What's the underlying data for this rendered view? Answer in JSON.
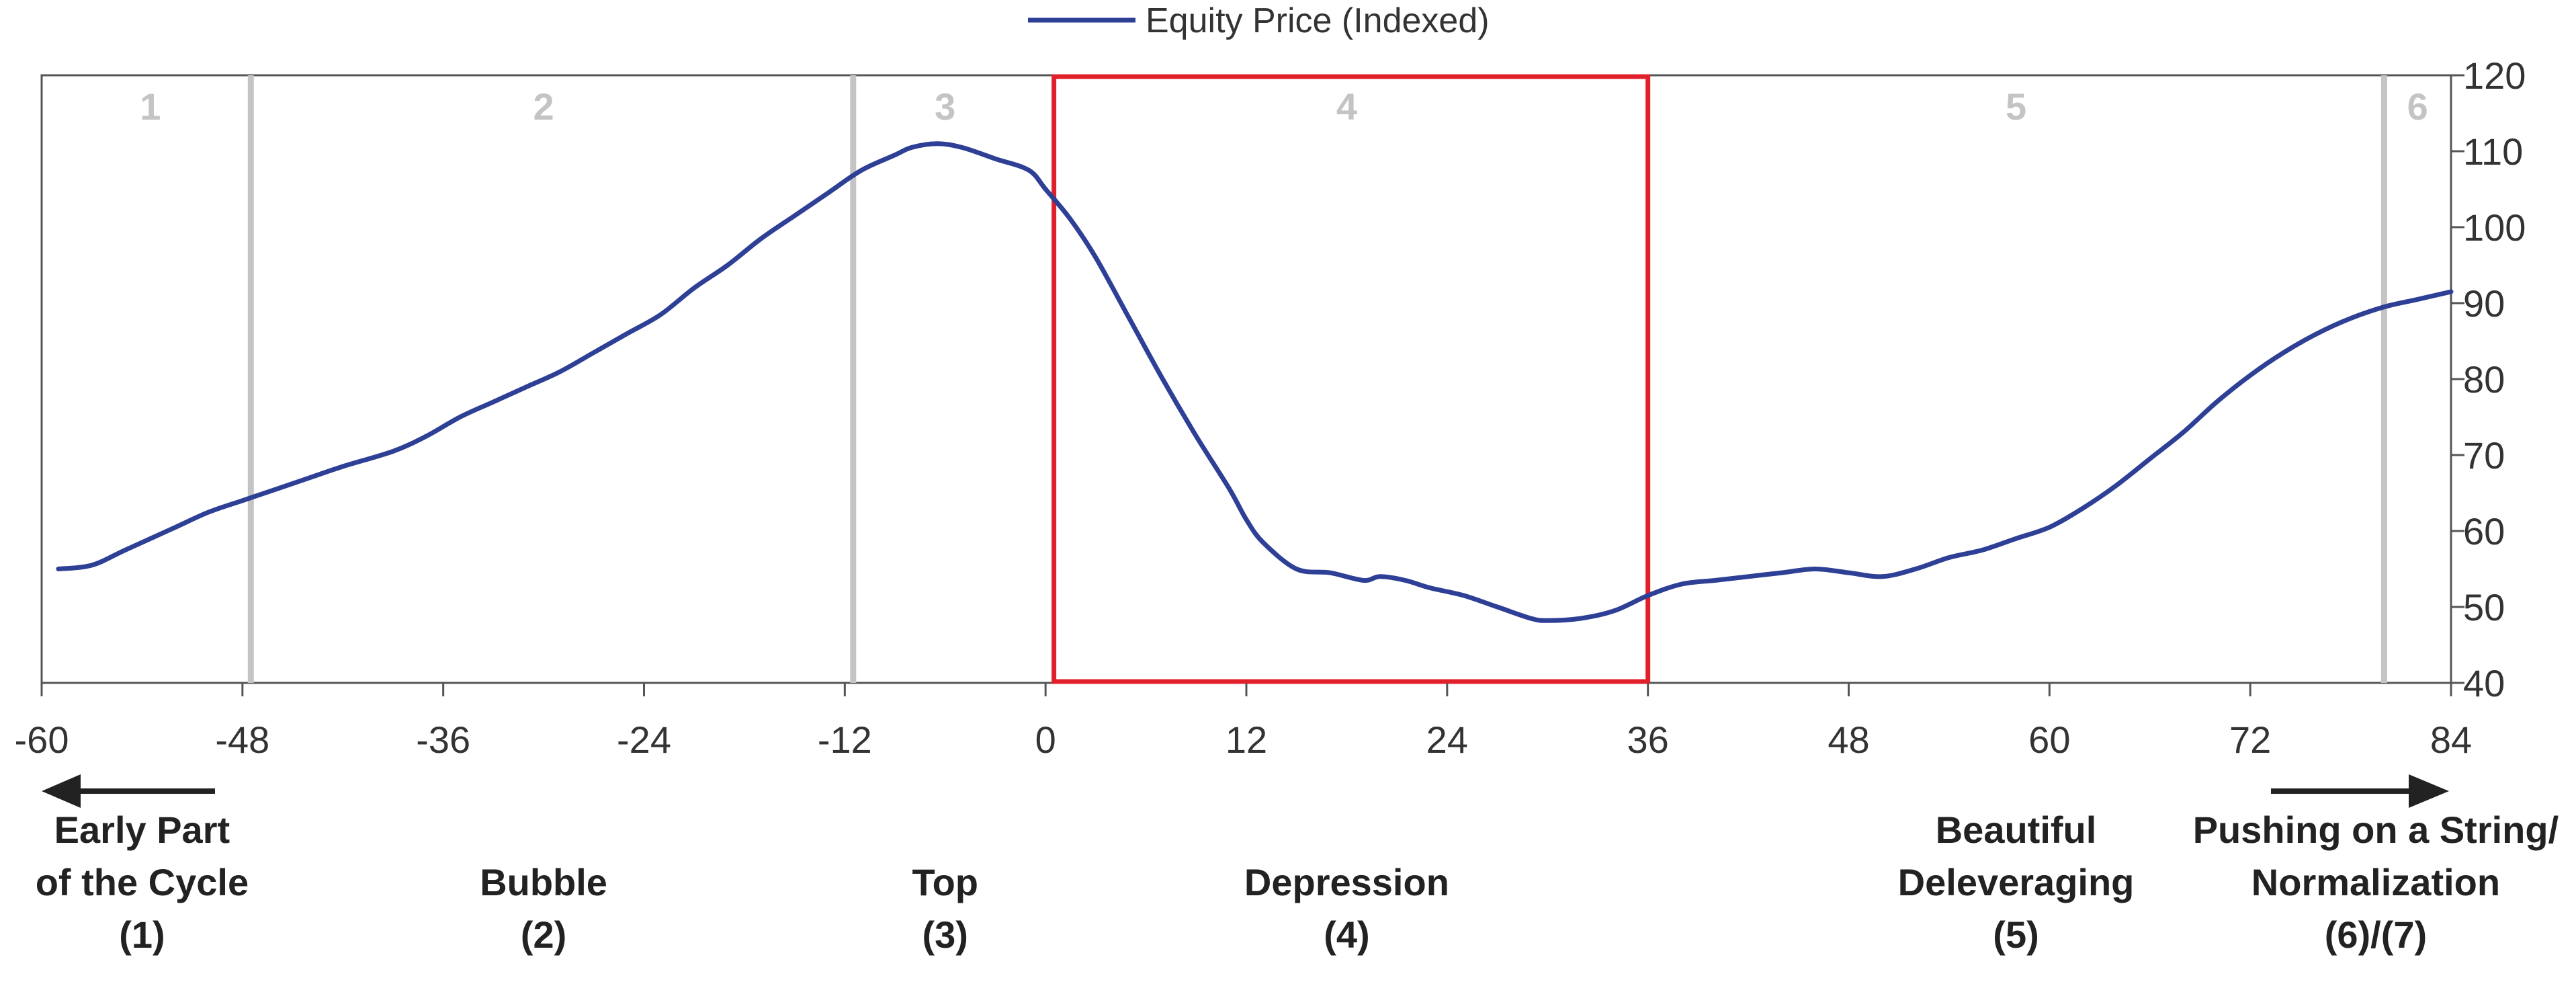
{
  "chart_data": {
    "type": "line",
    "legend": {
      "label": "Equity Price (Indexed)",
      "position": "top-center"
    },
    "series": [
      {
        "name": "Equity Price (Indexed)",
        "color": "#2e3f96",
        "x": [
          -59,
          -57,
          -55,
          -52,
          -50,
          -48,
          -46,
          -44,
          -42,
          -39,
          -37,
          -35,
          -33,
          -31,
          -29,
          -27,
          -25,
          -23,
          -21,
          -19,
          -17,
          -15,
          -13,
          -11,
          -9,
          -8,
          -6.5,
          -5,
          -3,
          -1,
          0,
          1.5,
          3,
          5,
          7,
          9,
          11,
          12,
          13,
          15,
          17,
          19,
          20,
          21.5,
          23,
          25,
          27,
          29,
          30,
          32,
          34,
          36,
          38,
          40,
          42,
          44,
          46,
          48,
          50,
          52,
          54,
          56,
          58,
          60,
          62,
          64,
          66,
          68,
          70,
          72,
          74,
          76,
          78,
          80,
          82,
          84
        ],
        "values": [
          55,
          55.5,
          57.5,
          60.5,
          62.5,
          64,
          65.5,
          67,
          68.5,
          70.5,
          72.5,
          75,
          77,
          79,
          81,
          83.5,
          86,
          88.5,
          92,
          95,
          98.5,
          101.5,
          104.5,
          107.5,
          109.5,
          110.5,
          111,
          110.5,
          109,
          107.5,
          105,
          101,
          96,
          88,
          80,
          72.5,
          65.5,
          61.5,
          58.5,
          55,
          54.5,
          53.5,
          54,
          53.5,
          52.5,
          51.5,
          50,
          48.5,
          48.2,
          48.5,
          49.5,
          51.5,
          53,
          53.5,
          54,
          54.5,
          55,
          54.5,
          54,
          55,
          56.5,
          57.5,
          59,
          60.5,
          63,
          66,
          69.5,
          73,
          77,
          80.5,
          83.5,
          86,
          88,
          89.5,
          90.5,
          91.5
        ]
      }
    ],
    "x_ticks": [
      "-60",
      "-48",
      "-36",
      "-24",
      "-12",
      "0",
      "12",
      "24",
      "36",
      "48",
      "60",
      "72",
      "84"
    ],
    "xlim": [
      -60,
      84
    ],
    "y_ticks": [
      "120",
      "110",
      "100",
      "90",
      "80",
      "70",
      "60",
      "50",
      "40"
    ],
    "ylim": [
      40,
      120
    ],
    "y_axis_side": "right",
    "grid": false,
    "phase_dividers_x": [
      -47.5,
      -11.5,
      80
    ],
    "phase_labels": [
      {
        "label": "1",
        "x": -53.5
      },
      {
        "label": "2",
        "x": -30
      },
      {
        "label": "3",
        "x": -6
      },
      {
        "label": "4",
        "x": 18
      },
      {
        "label": "5",
        "x": 58
      },
      {
        "label": "6",
        "x": 82
      }
    ],
    "highlight_box": {
      "x_start": 0.5,
      "x_end": 36,
      "color": "#e0202a"
    },
    "stage_labels": [
      {
        "lines": [
          "Early Part",
          "of the Cycle",
          "(1)"
        ],
        "x": -54,
        "arrow": "left"
      },
      {
        "lines": [
          "Bubble",
          "(2)"
        ],
        "x": -30
      },
      {
        "lines": [
          "Top",
          "(3)"
        ],
        "x": -6
      },
      {
        "lines": [
          "Depression",
          "(4)"
        ],
        "x": 18
      },
      {
        "lines": [
          "Beautiful",
          "Deleveraging",
          "(5)"
        ],
        "x": 58
      },
      {
        "lines": [
          "Pushing on a String/",
          "Normalization",
          "(6)/(7)"
        ],
        "x": 79.5,
        "arrow": "right"
      }
    ],
    "colors": {
      "line": "#2e3f96",
      "divider": "#c4c4c4",
      "highlight": "#e0202a",
      "axis": "#555555"
    }
  }
}
